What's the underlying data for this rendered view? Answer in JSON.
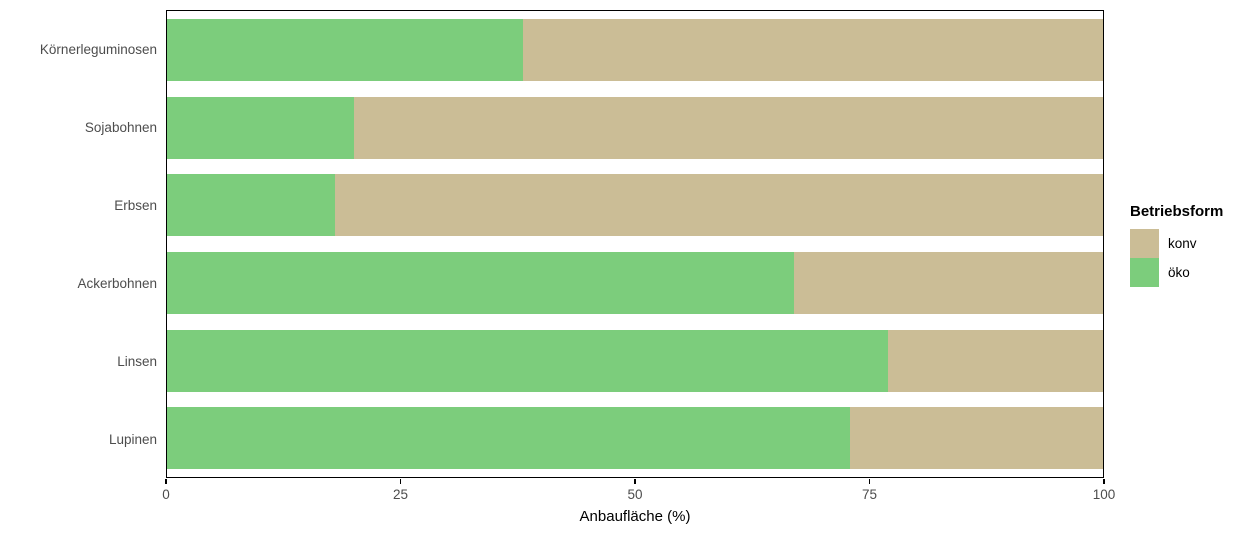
{
  "chart_data": {
    "type": "bar",
    "orientation": "horizontal",
    "stacking": "percent",
    "title": "",
    "xlabel": "Anbaufläche (%)",
    "ylabel": "",
    "xlim": [
      0,
      100
    ],
    "x_ticks": [
      "0",
      "25",
      "50",
      "75",
      "100"
    ],
    "categories": [
      "Körnerleguminosen",
      "Sojabohnen",
      "Erbsen",
      "Ackerbohnen",
      "Linsen",
      "Lupinen"
    ],
    "series": [
      {
        "name": "konv",
        "color": "#CBBD96",
        "values": [
          62,
          80,
          82,
          33,
          23,
          27
        ]
      },
      {
        "name": "öko",
        "color": "#7CCD7C",
        "values": [
          38,
          20,
          18,
          67,
          77,
          73
        ]
      }
    ],
    "stack_order_left_to_right": [
      "öko",
      "konv"
    ],
    "legend": {
      "title": "Betriebsform",
      "position": "right",
      "entries": [
        "konv",
        "öko"
      ]
    },
    "grid": false,
    "panel_border_color": "#000000",
    "axis_text_color": "#4d4d4d"
  }
}
